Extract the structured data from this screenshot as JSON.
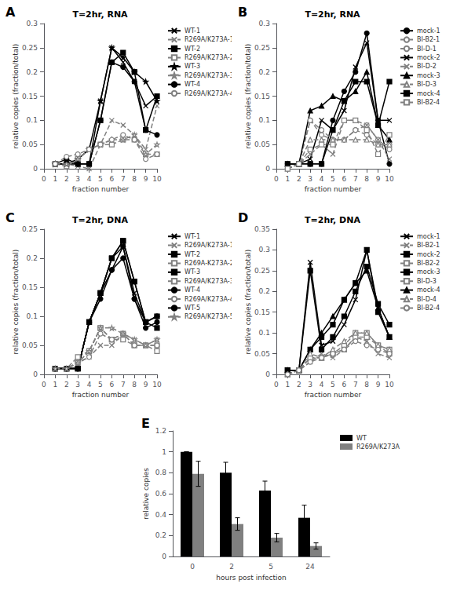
{
  "chart_data": [
    {
      "type": "line",
      "annotations": [
        "A"
      ],
      "title": "T=2hr, RNA",
      "xlabel": "fraction number",
      "ylabel": "relative copies (fraction/total)",
      "x": [
        1,
        2,
        3,
        4,
        5,
        6,
        7,
        8,
        9,
        10
      ],
      "xlim": [
        0,
        10
      ],
      "xticks": [
        0,
        1,
        2,
        3,
        4,
        5,
        6,
        7,
        8,
        9,
        10
      ],
      "ylim": [
        0,
        0.3
      ],
      "yticks": [
        0,
        0.05,
        0.1,
        0.15,
        0.2,
        0.25,
        0.3
      ],
      "grid": false,
      "legend": "right",
      "series": [
        {
          "name": "WT-1",
          "color": "black",
          "marker": "x",
          "line_style": "solid",
          "values": [
            0.01,
            0.01,
            0.01,
            0.01,
            0.14,
            0.25,
            0.22,
            0.18,
            0.13,
            0.15
          ]
        },
        {
          "name": "R269A/K273A-1",
          "color": "gray",
          "marker": "x",
          "line_style": "dashed",
          "values": [
            0.01,
            0.01,
            0.005,
            0.0,
            0.05,
            0.1,
            0.09,
            0.07,
            0.04,
            0.13
          ]
        },
        {
          "name": "WT-2",
          "color": "black",
          "marker": "square",
          "line_style": "solid",
          "values": [
            0.01,
            0.01,
            0.01,
            0.01,
            0.1,
            0.22,
            0.24,
            0.2,
            0.08,
            0.15
          ]
        },
        {
          "name": "R269A/K273A-2",
          "color": "gray",
          "marker": "square",
          "line_style": "dashed",
          "values": [
            0.01,
            0.005,
            0.02,
            0.04,
            0.05,
            0.05,
            0.06,
            0.06,
            0.03,
            0.03
          ]
        },
        {
          "name": "WT-3",
          "color": "black",
          "marker": "star",
          "line_style": "solid",
          "values": [
            0.01,
            0.01,
            0.02,
            0.04,
            0.14,
            0.25,
            0.23,
            0.2,
            0.18,
            0.14
          ]
        },
        {
          "name": "R269A/K273A-3",
          "color": "gray",
          "marker": "star",
          "line_style": "dashed",
          "values": [
            0.01,
            0.01,
            0.02,
            0.04,
            0.05,
            0.06,
            0.06,
            0.07,
            0.03,
            0.05
          ]
        },
        {
          "name": "WT-4",
          "color": "black",
          "marker": "circle",
          "line_style": "solid",
          "values": [
            0.01,
            0.02,
            0.01,
            0.01,
            0.1,
            0.22,
            0.21,
            0.18,
            0.08,
            0.07
          ]
        },
        {
          "name": "R269A/K273A-4",
          "color": "gray",
          "marker": "circle",
          "line_style": "dashed",
          "values": [
            0.01,
            0.025,
            0.03,
            0.04,
            0.05,
            0.06,
            0.07,
            0.06,
            0.02,
            0.03
          ]
        }
      ]
    },
    {
      "type": "line",
      "annotations": [
        "B"
      ],
      "title": "T=2hr, RNA",
      "xlabel": "fraction number",
      "ylabel": "relative copies (fraction/total)",
      "x": [
        1,
        2,
        3,
        4,
        5,
        6,
        7,
        8,
        9,
        10
      ],
      "xlim": [
        0,
        10
      ],
      "xticks": [
        0,
        1,
        2,
        3,
        4,
        5,
        6,
        7,
        8,
        9,
        10
      ],
      "ylim": [
        0,
        0.3
      ],
      "yticks": [
        0,
        0.05,
        0.1,
        0.15,
        0.2,
        0.25,
        0.3
      ],
      "grid": false,
      "legend": "right",
      "series": [
        {
          "name": "mock-1",
          "color": "black",
          "marker": "circle",
          "line_style": "solid",
          "values": [
            0.01,
            0.01,
            0.01,
            0.01,
            0.1,
            0.16,
            0.2,
            0.28,
            0.1,
            0.01
          ]
        },
        {
          "name": "BI-B2-1",
          "color": "gray",
          "marker": "circle",
          "line_style": "dashed",
          "values": [
            0.0,
            0.01,
            0.1,
            0.07,
            0.06,
            0.06,
            0.08,
            0.09,
            0.06,
            0.04
          ]
        },
        {
          "name": "BI-D-1",
          "color": "gray",
          "marker": "circle",
          "line_style": "dashed",
          "values": [
            0.0,
            0.01,
            0.1,
            0.08,
            0.06,
            0.06,
            0.08,
            0.07,
            0.05,
            0.05
          ]
        },
        {
          "name": "mock-2",
          "color": "black",
          "marker": "x",
          "line_style": "solid",
          "values": [
            0.01,
            0.01,
            0.02,
            0.1,
            0.08,
            0.12,
            0.21,
            0.26,
            0.1,
            0.1
          ]
        },
        {
          "name": "BI-D-2",
          "color": "gray",
          "marker": "x",
          "line_style": "dashed",
          "values": [
            0.0,
            0.01,
            0.03,
            0.05,
            0.03,
            0.1,
            0.1,
            0.09,
            0.06,
            0.02
          ]
        },
        {
          "name": "mock-3",
          "color": "black",
          "marker": "triangle",
          "line_style": "solid",
          "values": [
            0.01,
            0.01,
            0.12,
            0.13,
            0.15,
            0.14,
            0.16,
            0.2,
            0.09,
            0.06
          ]
        },
        {
          "name": "BI-D-3",
          "color": "gray",
          "marker": "triangle",
          "line_style": "dashed",
          "values": [
            0.0,
            0.01,
            0.06,
            0.06,
            0.06,
            0.06,
            0.06,
            0.06,
            0.05,
            0.05
          ]
        },
        {
          "name": "mock-4",
          "color": "black",
          "marker": "square",
          "line_style": "solid",
          "values": [
            0.01,
            0.01,
            0.01,
            0.01,
            0.08,
            0.14,
            0.18,
            0.18,
            0.09,
            0.18
          ]
        },
        {
          "name": "BI-B2-4",
          "color": "gray",
          "marker": "square",
          "line_style": "dashed",
          "values": [
            0.0,
            0.01,
            0.04,
            0.05,
            0.05,
            0.1,
            0.1,
            0.08,
            0.03,
            0.07
          ]
        }
      ]
    },
    {
      "type": "line",
      "annotations": [
        "C"
      ],
      "title": "T=2hr, DNA",
      "xlabel": "fraction number",
      "ylabel": "relative copies (fraction/total)",
      "x": [
        1,
        2,
        3,
        4,
        5,
        6,
        7,
        8,
        9,
        10
      ],
      "xlim": [
        0,
        10
      ],
      "xticks": [
        0,
        1,
        2,
        3,
        4,
        5,
        6,
        7,
        8,
        9,
        10
      ],
      "ylim": [
        0,
        0.25
      ],
      "yticks": [
        0,
        0.05,
        0.1,
        0.15,
        0.2,
        0.25
      ],
      "grid": false,
      "legend": "right",
      "series": [
        {
          "name": "WT-1",
          "color": "black",
          "marker": "x",
          "line_style": "solid",
          "values": [
            0.01,
            0.01,
            0.01,
            0.09,
            0.14,
            0.2,
            0.22,
            0.14,
            0.09,
            0.1
          ]
        },
        {
          "name": "R269A/K273A-1",
          "color": "gray",
          "marker": "x",
          "line_style": "dashed",
          "values": [
            0.01,
            0.01,
            0.02,
            0.03,
            0.05,
            0.05,
            0.07,
            0.06,
            0.05,
            0.06
          ]
        },
        {
          "name": "WT-2",
          "color": "black",
          "marker": "square",
          "line_style": "solid",
          "values": [
            0.01,
            0.01,
            0.01,
            0.09,
            0.14,
            0.2,
            0.23,
            0.16,
            0.09,
            0.1
          ]
        },
        {
          "name": "R269A-K273A-2",
          "color": "gray",
          "marker": "square",
          "line_style": "dashed",
          "values": [
            0.01,
            0.01,
            0.03,
            0.04,
            0.08,
            0.06,
            0.07,
            0.05,
            0.05,
            0.05
          ]
        },
        {
          "name": "WT-3",
          "color": "black",
          "marker": "square",
          "line_style": "solid",
          "values": [
            0.01,
            0.01,
            0.01,
            0.09,
            0.14,
            0.2,
            0.23,
            0.16,
            0.09,
            0.08
          ]
        },
        {
          "name": "R269A/K273A-3",
          "color": "gray",
          "marker": "square",
          "line_style": "dashed",
          "values": [
            0.01,
            0.01,
            0.02,
            0.04,
            0.08,
            0.06,
            0.06,
            0.05,
            0.05,
            0.04
          ]
        },
        {
          "name": "WT-4",
          "color": "black",
          "marker": "circle",
          "line_style": "solid",
          "values": [
            0.01,
            0.01,
            0.01,
            0.09,
            0.14,
            0.18,
            0.2,
            0.13,
            0.08,
            0.09
          ]
        },
        {
          "name": "R269A/K273A-4",
          "color": "gray",
          "marker": "circle",
          "line_style": "dashed",
          "values": [
            0.01,
            0.01,
            0.02,
            0.03,
            0.07,
            0.06,
            0.07,
            0.05,
            0.05,
            0.05
          ]
        },
        {
          "name": "WT-5",
          "color": "black",
          "marker": "circle",
          "line_style": "solid",
          "values": [
            0.01,
            0.01,
            0.01,
            0.09,
            0.13,
            0.18,
            0.22,
            0.13,
            0.09,
            0.1
          ]
        },
        {
          "name": "R269A/K273A-5",
          "color": "gray",
          "marker": "star",
          "line_style": "dashed",
          "values": [
            0.01,
            0.01,
            0.02,
            0.04,
            0.08,
            0.08,
            0.07,
            0.06,
            0.05,
            0.06
          ]
        }
      ]
    },
    {
      "type": "line",
      "annotations": [
        "D"
      ],
      "title": "T=2hr, DNA",
      "xlabel": "fraction number",
      "ylabel": "relative copies (fraction/total)",
      "x": [
        1,
        2,
        3,
        4,
        5,
        6,
        7,
        8,
        9,
        10
      ],
      "xlim": [
        0,
        10
      ],
      "xticks": [
        0,
        1,
        2,
        3,
        4,
        5,
        6,
        7,
        8,
        9,
        10
      ],
      "ylim": [
        0,
        0.35
      ],
      "yticks": [
        0,
        0.05,
        0.1,
        0.15,
        0.2,
        0.25,
        0.3,
        0.35
      ],
      "grid": false,
      "legend": "right",
      "series": [
        {
          "name": "mock-1",
          "color": "black",
          "marker": "x",
          "line_style": "solid",
          "values": [
            0.01,
            0.01,
            0.27,
            0.07,
            0.08,
            0.12,
            0.18,
            0.3,
            0.16,
            0.09
          ]
        },
        {
          "name": "BI-B2-1",
          "color": "gray",
          "marker": "x",
          "line_style": "dashed",
          "values": [
            0.0,
            0.01,
            0.03,
            0.05,
            0.04,
            0.06,
            0.09,
            0.08,
            0.05,
            0.04
          ]
        },
        {
          "name": "mock-2",
          "color": "black",
          "marker": "square",
          "line_style": "solid",
          "values": [
            0.01,
            0.01,
            0.25,
            0.06,
            0.09,
            0.14,
            0.2,
            0.26,
            0.17,
            0.12
          ]
        },
        {
          "name": "BI-B2-2",
          "color": "gray",
          "marker": "square",
          "line_style": "dashed",
          "values": [
            0.0,
            0.01,
            0.04,
            0.04,
            0.05,
            0.07,
            0.1,
            0.1,
            0.07,
            0.06
          ]
        },
        {
          "name": "mock-3",
          "color": "black",
          "marker": "square",
          "line_style": "solid",
          "values": [
            0.01,
            0.01,
            0.06,
            0.09,
            0.12,
            0.18,
            0.22,
            0.3,
            0.15,
            0.09
          ]
        },
        {
          "name": "BI-D-3",
          "color": "gray",
          "marker": "square",
          "line_style": "dashed",
          "values": [
            0.0,
            0.01,
            0.04,
            0.04,
            0.05,
            0.06,
            0.09,
            0.09,
            0.07,
            0.05
          ]
        },
        {
          "name": "mock-4",
          "color": "black",
          "marker": "triangle",
          "line_style": "solid",
          "values": [
            0.01,
            0.01,
            0.06,
            0.1,
            0.14,
            0.18,
            0.22,
            0.25,
            0.16,
            0.09
          ]
        },
        {
          "name": "BI-D-4",
          "color": "gray",
          "marker": "triangle",
          "line_style": "dashed",
          "values": [
            0.0,
            0.01,
            0.05,
            0.04,
            0.06,
            0.08,
            0.1,
            0.1,
            0.07,
            0.06
          ]
        },
        {
          "name": "BI-B2-4",
          "color": "gray",
          "marker": "circle",
          "line_style": "dashed",
          "values": [
            0.0,
            0.01,
            0.03,
            0.04,
            0.05,
            0.06,
            0.08,
            0.07,
            0.06,
            0.05
          ]
        }
      ]
    },
    {
      "type": "bar",
      "annotations": [
        "E"
      ],
      "xlabel": "hours post infection",
      "ylabel": "relative copies",
      "categories": [
        "0",
        "2",
        "5",
        "24"
      ],
      "ylim": [
        0,
        1.2
      ],
      "yticks": [
        0,
        0.2,
        0.4,
        0.6,
        0.8,
        1,
        1.2
      ],
      "grid": false,
      "legend": "right",
      "series": [
        {
          "name": "WT",
          "color": "black",
          "values": [
            1.0,
            0.8,
            0.63,
            0.37
          ],
          "errors": [
            0.0,
            0.1,
            0.09,
            0.12
          ]
        },
        {
          "name": "R269A/K273A",
          "color": "gray",
          "values": [
            0.79,
            0.31,
            0.18,
            0.1
          ],
          "errors": [
            0.12,
            0.06,
            0.04,
            0.03
          ]
        }
      ]
    }
  ]
}
